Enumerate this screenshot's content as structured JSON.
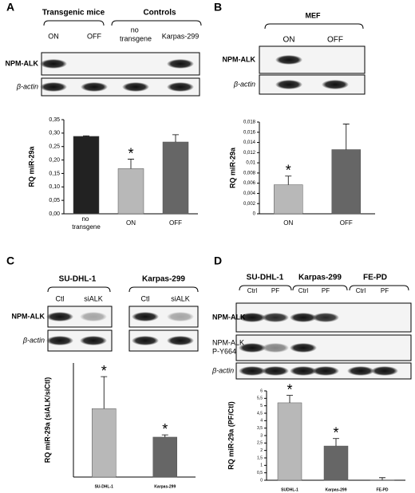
{
  "panels": [
    {
      "letter": "A",
      "groups": [
        "Transgenic mice",
        "Controls"
      ],
      "lanes": [
        "ON",
        "OFF",
        "no transgene",
        "Karpas-299"
      ],
      "blots": [
        "NPM-ALK",
        "β-actin"
      ]
    },
    {
      "letter": "B",
      "groups": [
        "MEF"
      ],
      "lanes": [
        "ON",
        "OFF"
      ],
      "blots": [
        "NPM-ALK",
        "β-actin"
      ]
    },
    {
      "letter": "C",
      "groups": [
        "SU-DHL-1",
        "Karpas-299"
      ],
      "lanes": [
        "Ctl",
        "siALK",
        "Ctl",
        "siALK"
      ],
      "blots": [
        "NPM-ALK",
        "β-actin"
      ]
    },
    {
      "letter": "D",
      "groups": [
        "SU-DHL-1",
        "Karpas-299",
        "FE-PD"
      ],
      "lanes": [
        "Ctrl",
        "PF",
        "Ctrl",
        "PF",
        "Ctrl",
        "PF"
      ],
      "blots": [
        "NPM-ALK",
        "NPM-ALK P-Y664",
        "β-actin"
      ]
    }
  ],
  "chart_data": [
    {
      "type": "bar",
      "ylabel": "RQ miR-29a",
      "categories": [
        "no transgene",
        "ON",
        "OFF"
      ],
      "values": [
        0.288,
        0.168,
        0.267
      ],
      "errors": [
        0.002,
        0.035,
        0.027
      ],
      "colors": [
        "#222222",
        "#b8b8b8",
        "#666666"
      ],
      "ylim": [
        0,
        0.35
      ],
      "yticks": [
        {
          "value": 0,
          "label": "0,00"
        },
        {
          "value": 0.05,
          "label": "0,05"
        },
        {
          "value": 0.1,
          "label": "0,10"
        },
        {
          "value": 0.15,
          "label": "0,15"
        },
        {
          "value": 0.2,
          "label": "0,20"
        },
        {
          "value": 0.25,
          "label": "0,25"
        },
        {
          "value": 0.3,
          "label": "0,30"
        },
        {
          "value": 0.35,
          "label": "0,35"
        }
      ],
      "annotations": [
        {
          "text": "*",
          "index": 1
        }
      ]
    },
    {
      "type": "bar",
      "ylabel": "RQ miR-29a",
      "categories": [
        "ON",
        "OFF"
      ],
      "values": [
        0.0057,
        0.0126
      ],
      "errors": [
        0.0017,
        0.005
      ],
      "colors": [
        "#b8b8b8",
        "#666666"
      ],
      "ylim": [
        0,
        0.018
      ],
      "yticks": [
        0,
        {
          "value": 0.002,
          "label": "0,002"
        },
        {
          "value": 0.004,
          "label": "0,004"
        },
        {
          "value": 0.006,
          "label": "0,006"
        },
        {
          "value": 0.008,
          "label": "0,008"
        },
        {
          "value": 0.01,
          "label": "0,01"
        },
        {
          "value": 0.012,
          "label": "0,012"
        },
        {
          "value": 0.014,
          "label": "0,014"
        },
        {
          "value": 0.016,
          "label": "0,016"
        },
        {
          "value": 0.018,
          "label": "0,018"
        }
      ],
      "annotations": [
        {
          "text": "*",
          "index": 0
        }
      ]
    },
    {
      "type": "bar",
      "ylabel": "RQ miR-29a (siALK/siCtl)",
      "categories": [
        "SU-DHL-1",
        "Karpas-299"
      ],
      "values": [
        0.6,
        0.35
      ],
      "errors": [
        0.28,
        0.02
      ],
      "colors": [
        "#b8b8b8",
        "#666666"
      ],
      "ylim": [
        0,
        1
      ],
      "annotations": [
        {
          "text": "*",
          "index": 0
        },
        {
          "text": "*",
          "index": 1
        }
      ]
    },
    {
      "type": "bar",
      "ylabel": "RQ miR-29a (PF/Ctl)",
      "categories": [
        "SUDHL-1",
        "Karpas-299",
        "FE-PD"
      ],
      "values": [
        5.2,
        2.3,
        0.02
      ],
      "errors": [
        0.5,
        0.5,
        0.15
      ],
      "colors": [
        "#b8b8b8",
        "#666666",
        "#444444"
      ],
      "ylim": [
        0,
        6
      ],
      "yticks": [
        0,
        {
          "value": 0.5,
          "label": "0,5"
        },
        1,
        {
          "value": 1.5,
          "label": "1,5"
        },
        2,
        {
          "value": 2.5,
          "label": "2,5"
        },
        3,
        {
          "value": 3.5,
          "label": "3,5"
        },
        4,
        {
          "value": 4.5,
          "label": "4,5"
        },
        5,
        {
          "value": 5.5,
          "label": "5,5"
        },
        6
      ],
      "annotations": [
        {
          "text": "*",
          "index": 0
        },
        {
          "text": "*",
          "index": 1
        }
      ]
    }
  ]
}
